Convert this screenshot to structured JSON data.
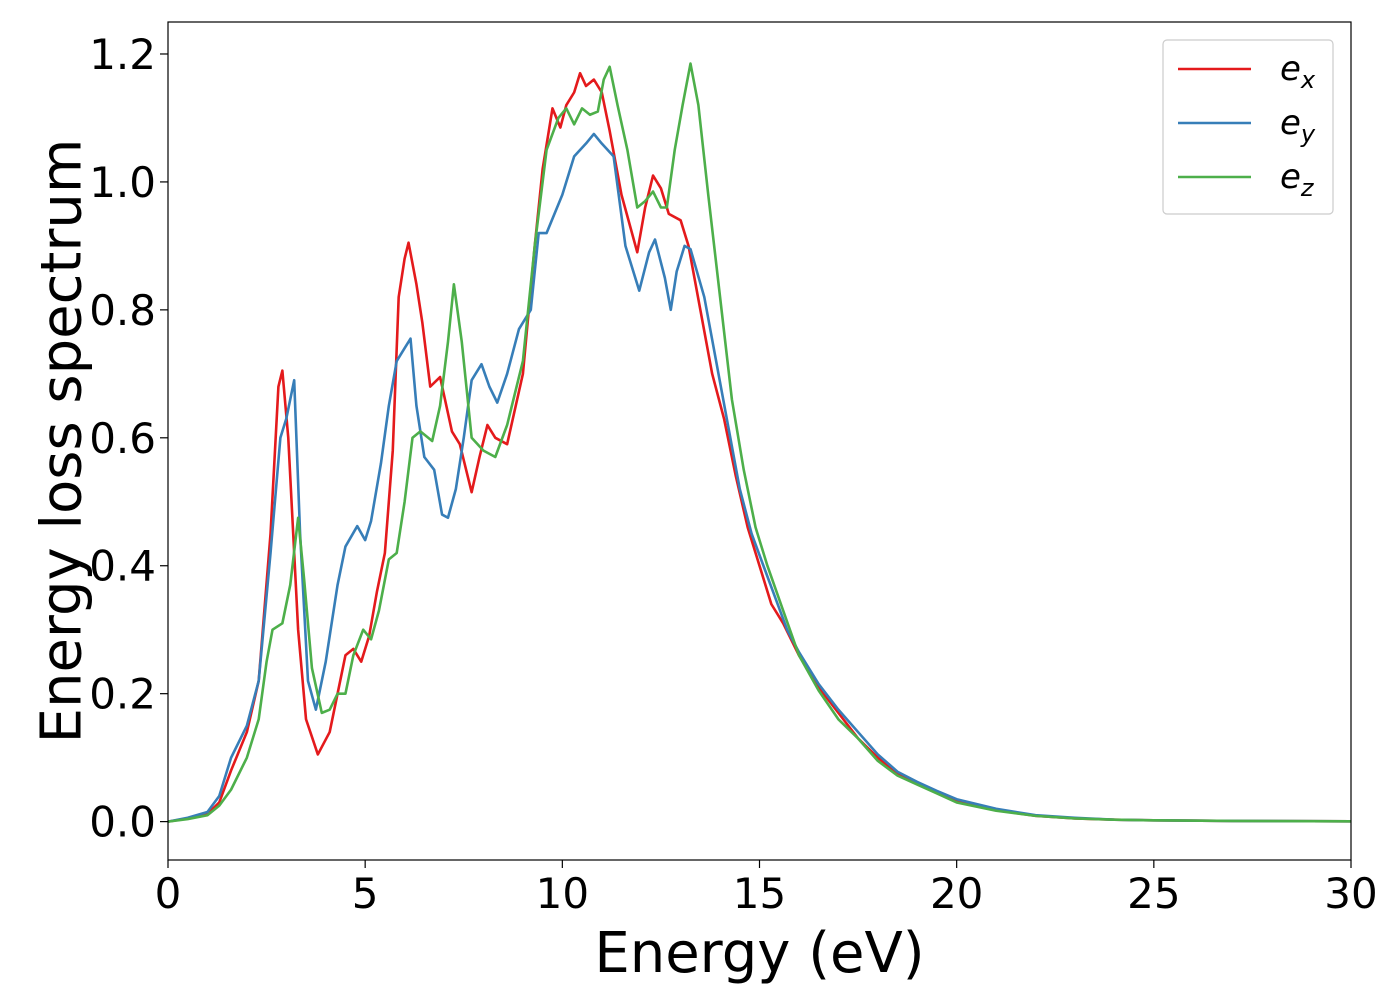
{
  "chart_data": {
    "type": "line",
    "title": "",
    "xlabel": "Energy (eV)",
    "ylabel": "Energy loss spectrum",
    "xlim": [
      0,
      30
    ],
    "ylim": [
      -0.06,
      1.25
    ],
    "xticks": [
      0,
      5,
      10,
      15,
      20,
      25,
      30
    ],
    "xtick_labels": [
      "0",
      "5",
      "10",
      "15",
      "20",
      "25",
      "30"
    ],
    "yticks": [
      0.0,
      0.2,
      0.4,
      0.6,
      0.8,
      1.0,
      1.2
    ],
    "ytick_labels": [
      "0.0",
      "0.2",
      "0.4",
      "0.6",
      "0.8",
      "1.0",
      "1.2"
    ],
    "grid": false,
    "legend_position": "top-right",
    "series": [
      {
        "name": "e_x",
        "legend_base": "e",
        "legend_sub": "x",
        "color": "#e41a1c",
        "points": [
          [
            0,
            0
          ],
          [
            0.5,
            0.005
          ],
          [
            1,
            0.012
          ],
          [
            1.3,
            0.03
          ],
          [
            1.6,
            0.08
          ],
          [
            2,
            0.14
          ],
          [
            2.3,
            0.22
          ],
          [
            2.6,
            0.45
          ],
          [
            2.8,
            0.68
          ],
          [
            2.9,
            0.705
          ],
          [
            3.05,
            0.6
          ],
          [
            3.3,
            0.3
          ],
          [
            3.5,
            0.16
          ],
          [
            3.8,
            0.105
          ],
          [
            4.1,
            0.14
          ],
          [
            4.3,
            0.2
          ],
          [
            4.5,
            0.26
          ],
          [
            4.7,
            0.27
          ],
          [
            4.9,
            0.25
          ],
          [
            5.1,
            0.29
          ],
          [
            5.3,
            0.36
          ],
          [
            5.5,
            0.42
          ],
          [
            5.7,
            0.58
          ],
          [
            5.85,
            0.82
          ],
          [
            6.0,
            0.88
          ],
          [
            6.1,
            0.905
          ],
          [
            6.3,
            0.84
          ],
          [
            6.45,
            0.78
          ],
          [
            6.65,
            0.68
          ],
          [
            6.9,
            0.695
          ],
          [
            7.2,
            0.61
          ],
          [
            7.4,
            0.59
          ],
          [
            7.7,
            0.515
          ],
          [
            7.9,
            0.57
          ],
          [
            8.1,
            0.62
          ],
          [
            8.3,
            0.6
          ],
          [
            8.6,
            0.59
          ],
          [
            9.0,
            0.7
          ],
          [
            9.3,
            0.9
          ],
          [
            9.5,
            1.02
          ],
          [
            9.75,
            1.115
          ],
          [
            9.95,
            1.085
          ],
          [
            10.1,
            1.12
          ],
          [
            10.3,
            1.14
          ],
          [
            10.45,
            1.17
          ],
          [
            10.6,
            1.15
          ],
          [
            10.8,
            1.16
          ],
          [
            11.0,
            1.14
          ],
          [
            11.2,
            1.08
          ],
          [
            11.5,
            0.98
          ],
          [
            11.9,
            0.89
          ],
          [
            12.1,
            0.96
          ],
          [
            12.3,
            1.01
          ],
          [
            12.5,
            0.99
          ],
          [
            12.7,
            0.95
          ],
          [
            13.0,
            0.94
          ],
          [
            13.2,
            0.9
          ],
          [
            13.5,
            0.8
          ],
          [
            13.8,
            0.7
          ],
          [
            14.1,
            0.63
          ],
          [
            14.4,
            0.54
          ],
          [
            14.7,
            0.46
          ],
          [
            15.0,
            0.4
          ],
          [
            15.3,
            0.34
          ],
          [
            15.6,
            0.31
          ],
          [
            16.0,
            0.26
          ],
          [
            16.5,
            0.21
          ],
          [
            17.0,
            0.17
          ],
          [
            17.5,
            0.13
          ],
          [
            18.0,
            0.1
          ],
          [
            18.5,
            0.075
          ],
          [
            19.0,
            0.06
          ],
          [
            19.5,
            0.045
          ],
          [
            20.0,
            0.032
          ],
          [
            21.0,
            0.018
          ],
          [
            22.0,
            0.009
          ],
          [
            23.0,
            0.005
          ],
          [
            24.0,
            0.003
          ],
          [
            25.0,
            0.002
          ],
          [
            27.0,
            0.001
          ],
          [
            30.0,
            0.0005
          ]
        ]
      },
      {
        "name": "e_y",
        "legend_base": "e",
        "legend_sub": "y",
        "color": "#377eb8",
        "points": [
          [
            0,
            0
          ],
          [
            0.5,
            0.006
          ],
          [
            1,
            0.015
          ],
          [
            1.3,
            0.04
          ],
          [
            1.6,
            0.1
          ],
          [
            2,
            0.15
          ],
          [
            2.3,
            0.22
          ],
          [
            2.6,
            0.42
          ],
          [
            2.85,
            0.6
          ],
          [
            3.0,
            0.63
          ],
          [
            3.2,
            0.69
          ],
          [
            3.35,
            0.45
          ],
          [
            3.55,
            0.22
          ],
          [
            3.75,
            0.175
          ],
          [
            4.0,
            0.25
          ],
          [
            4.3,
            0.37
          ],
          [
            4.5,
            0.43
          ],
          [
            4.8,
            0.462
          ],
          [
            5.0,
            0.44
          ],
          [
            5.15,
            0.47
          ],
          [
            5.4,
            0.56
          ],
          [
            5.6,
            0.65
          ],
          [
            5.8,
            0.72
          ],
          [
            6.0,
            0.74
          ],
          [
            6.15,
            0.755
          ],
          [
            6.3,
            0.65
          ],
          [
            6.5,
            0.57
          ],
          [
            6.75,
            0.55
          ],
          [
            6.95,
            0.48
          ],
          [
            7.1,
            0.475
          ],
          [
            7.3,
            0.52
          ],
          [
            7.5,
            0.6
          ],
          [
            7.7,
            0.69
          ],
          [
            7.95,
            0.715
          ],
          [
            8.15,
            0.68
          ],
          [
            8.35,
            0.655
          ],
          [
            8.6,
            0.7
          ],
          [
            8.9,
            0.77
          ],
          [
            9.2,
            0.8
          ],
          [
            9.4,
            0.92
          ],
          [
            9.6,
            0.92
          ],
          [
            10.0,
            0.98
          ],
          [
            10.3,
            1.04
          ],
          [
            10.6,
            1.06
          ],
          [
            10.8,
            1.075
          ],
          [
            11.0,
            1.06
          ],
          [
            11.3,
            1.04
          ],
          [
            11.6,
            0.9
          ],
          [
            11.95,
            0.83
          ],
          [
            12.2,
            0.89
          ],
          [
            12.35,
            0.91
          ],
          [
            12.6,
            0.85
          ],
          [
            12.75,
            0.8
          ],
          [
            12.9,
            0.86
          ],
          [
            13.1,
            0.9
          ],
          [
            13.25,
            0.895
          ],
          [
            13.6,
            0.82
          ],
          [
            13.9,
            0.72
          ],
          [
            14.2,
            0.62
          ],
          [
            14.5,
            0.52
          ],
          [
            14.8,
            0.45
          ],
          [
            15.1,
            0.4
          ],
          [
            15.4,
            0.35
          ],
          [
            15.7,
            0.3
          ],
          [
            16.0,
            0.265
          ],
          [
            16.5,
            0.215
          ],
          [
            17.0,
            0.175
          ],
          [
            17.5,
            0.14
          ],
          [
            18.0,
            0.105
          ],
          [
            18.5,
            0.078
          ],
          [
            19.0,
            0.062
          ],
          [
            19.5,
            0.048
          ],
          [
            20.0,
            0.035
          ],
          [
            21.0,
            0.02
          ],
          [
            22.0,
            0.01
          ],
          [
            23.0,
            0.006
          ],
          [
            24.0,
            0.003
          ],
          [
            25.0,
            0.002
          ],
          [
            27.0,
            0.001
          ],
          [
            30.0,
            0.0005
          ]
        ]
      },
      {
        "name": "e_z",
        "legend_base": "e",
        "legend_sub": "z",
        "color": "#4daf4a",
        "points": [
          [
            0,
            0
          ],
          [
            0.5,
            0.004
          ],
          [
            1,
            0.01
          ],
          [
            1.3,
            0.025
          ],
          [
            1.6,
            0.05
          ],
          [
            2,
            0.1
          ],
          [
            2.3,
            0.16
          ],
          [
            2.5,
            0.25
          ],
          [
            2.65,
            0.3
          ],
          [
            2.9,
            0.31
          ],
          [
            3.1,
            0.37
          ],
          [
            3.3,
            0.475
          ],
          [
            3.45,
            0.38
          ],
          [
            3.65,
            0.24
          ],
          [
            3.9,
            0.17
          ],
          [
            4.1,
            0.175
          ],
          [
            4.3,
            0.2
          ],
          [
            4.5,
            0.2
          ],
          [
            4.7,
            0.26
          ],
          [
            4.95,
            0.3
          ],
          [
            5.15,
            0.285
          ],
          [
            5.35,
            0.33
          ],
          [
            5.6,
            0.41
          ],
          [
            5.8,
            0.42
          ],
          [
            6.0,
            0.5
          ],
          [
            6.2,
            0.6
          ],
          [
            6.4,
            0.61
          ],
          [
            6.7,
            0.595
          ],
          [
            6.9,
            0.65
          ],
          [
            7.1,
            0.75
          ],
          [
            7.25,
            0.84
          ],
          [
            7.45,
            0.75
          ],
          [
            7.7,
            0.6
          ],
          [
            8.0,
            0.58
          ],
          [
            8.3,
            0.57
          ],
          [
            8.6,
            0.62
          ],
          [
            9.0,
            0.72
          ],
          [
            9.3,
            0.9
          ],
          [
            9.6,
            1.05
          ],
          [
            9.9,
            1.1
          ],
          [
            10.1,
            1.115
          ],
          [
            10.3,
            1.09
          ],
          [
            10.5,
            1.115
          ],
          [
            10.7,
            1.105
          ],
          [
            10.9,
            1.11
          ],
          [
            11.05,
            1.16
          ],
          [
            11.2,
            1.18
          ],
          [
            11.4,
            1.12
          ],
          [
            11.65,
            1.05
          ],
          [
            11.9,
            0.96
          ],
          [
            12.1,
            0.97
          ],
          [
            12.3,
            0.985
          ],
          [
            12.5,
            0.96
          ],
          [
            12.65,
            0.96
          ],
          [
            12.85,
            1.05
          ],
          [
            13.05,
            1.12
          ],
          [
            13.25,
            1.185
          ],
          [
            13.45,
            1.12
          ],
          [
            13.7,
            0.98
          ],
          [
            14.0,
            0.82
          ],
          [
            14.3,
            0.66
          ],
          [
            14.6,
            0.55
          ],
          [
            14.9,
            0.46
          ],
          [
            15.2,
            0.4
          ],
          [
            15.6,
            0.33
          ],
          [
            16.0,
            0.26
          ],
          [
            16.5,
            0.205
          ],
          [
            17.0,
            0.16
          ],
          [
            17.5,
            0.13
          ],
          [
            18.0,
            0.095
          ],
          [
            18.5,
            0.072
          ],
          [
            19.0,
            0.058
          ],
          [
            19.5,
            0.044
          ],
          [
            20.0,
            0.03
          ],
          [
            21.0,
            0.017
          ],
          [
            22.0,
            0.009
          ],
          [
            23.0,
            0.005
          ],
          [
            24.0,
            0.003
          ],
          [
            25.0,
            0.002
          ],
          [
            27.0,
            0.001
          ],
          [
            30.0,
            0.0005
          ]
        ]
      }
    ]
  }
}
